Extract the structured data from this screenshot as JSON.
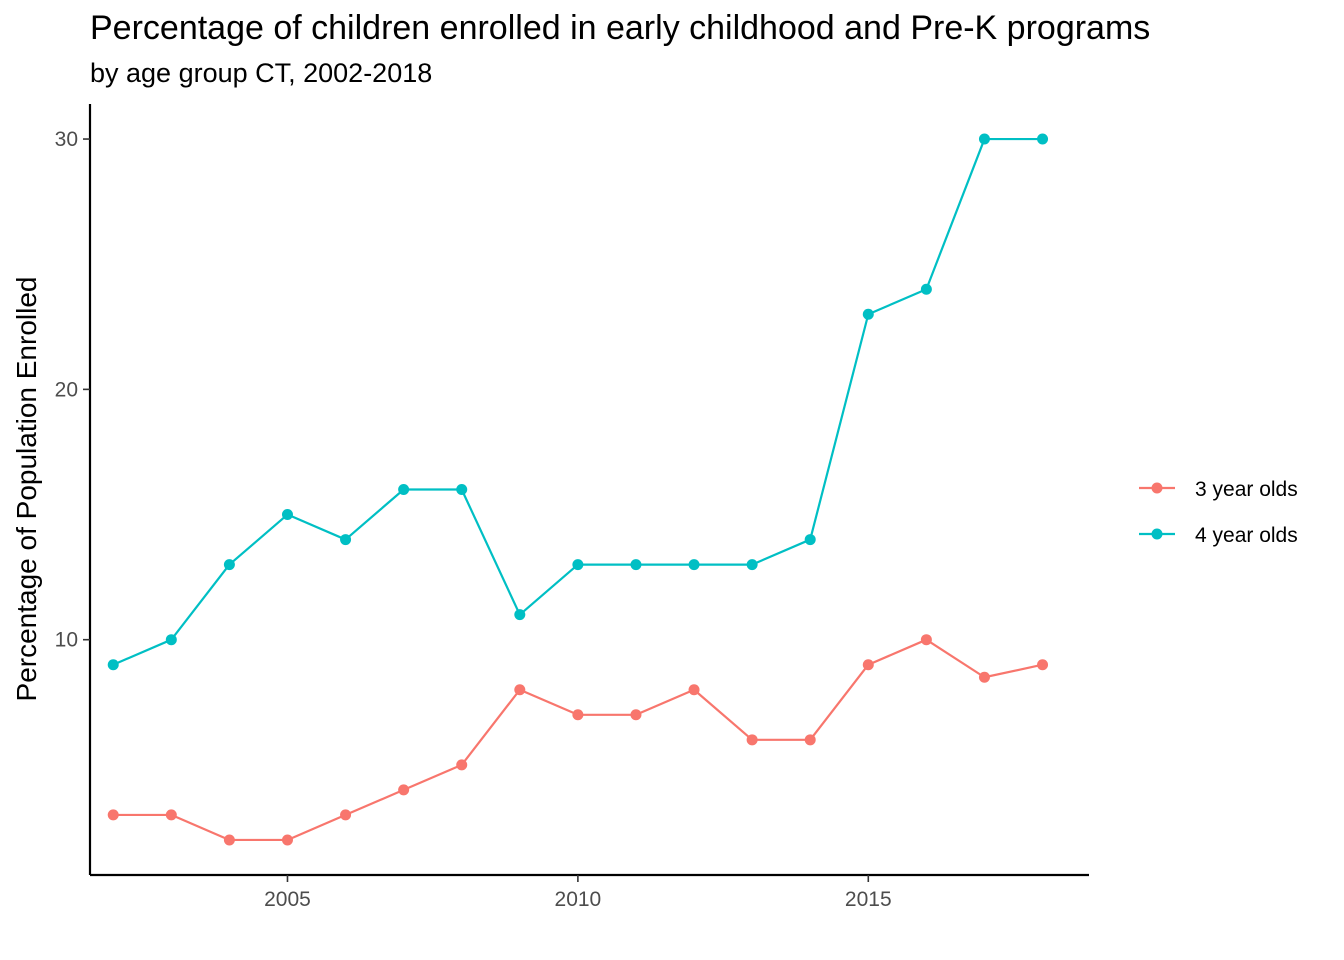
{
  "chart_data": {
    "type": "line",
    "title": "Percentage of children enrolled in early childhood and Pre-K programs",
    "subtitle": "by age group CT, 2002-2018",
    "xlabel": "",
    "ylabel": "Percentage of Population Enrolled",
    "x": [
      2002,
      2003,
      2004,
      2005,
      2006,
      2007,
      2008,
      2009,
      2010,
      2011,
      2012,
      2013,
      2014,
      2015,
      2016,
      2017,
      2018
    ],
    "xlim": [
      2001.6,
      2018.8
    ],
    "ylim": [
      0.6,
      31.4
    ],
    "x_ticks": [
      2005,
      2010,
      2015
    ],
    "x_tick_labels": [
      "2005",
      "2010",
      "2015"
    ],
    "y_ticks": [
      10,
      20,
      30
    ],
    "y_tick_labels": [
      "10",
      "20",
      "30"
    ],
    "grid": false,
    "legend_position": "right",
    "series": [
      {
        "name": "3 year olds",
        "color": "#F8766D",
        "values": [
          3,
          3,
          2,
          2,
          3,
          4,
          5,
          8,
          7,
          7,
          8,
          6,
          6,
          9,
          10,
          8.5,
          9
        ]
      },
      {
        "name": "4 year olds",
        "color": "#00BFC4",
        "values": [
          9,
          10,
          13,
          15,
          14,
          16,
          16,
          11,
          13,
          13,
          13,
          13,
          14,
          23,
          24,
          30,
          30
        ]
      }
    ]
  }
}
